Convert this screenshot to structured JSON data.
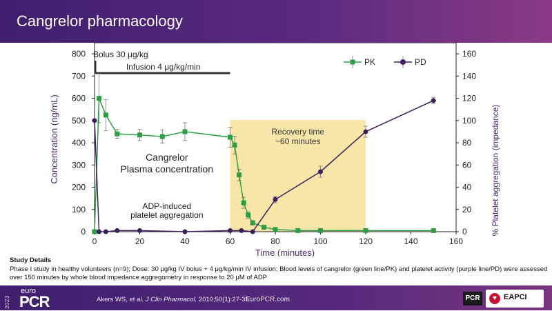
{
  "header": {
    "title": "Cangrelor pharmacology"
  },
  "chart_data": {
    "type": "line",
    "xlabel": "Time (minutes)",
    "ylabel_left": "Concentration (ng/mL)",
    "ylabel_right": "% Platelet aggregation (impedance)",
    "xlim": [
      0,
      160
    ],
    "ylim_left": [
      0,
      850
    ],
    "ylim_right": [
      0,
      170
    ],
    "xticks": [
      "0",
      "20",
      "40",
      "60",
      "80",
      "100",
      "120",
      "140",
      "160"
    ],
    "yticks_left": [
      "0",
      "100",
      "200",
      "300",
      "400",
      "500",
      "600",
      "700",
      "800"
    ],
    "yticks_right": [
      "0",
      "20",
      "40",
      "60",
      "80",
      "100",
      "120",
      "140",
      "160"
    ],
    "legend": {
      "position": "top-right",
      "items": [
        "PK",
        "PD"
      ]
    },
    "recovery_region": {
      "x_start": 60,
      "x_end": 120,
      "color": "#f7e6a8"
    },
    "colors": {
      "pk": "#2e9e46",
      "pd": "#3d1e5a",
      "recovery": "#f7e6a8",
      "axis": "#222222"
    },
    "series": [
      {
        "name": "PK",
        "axis": "left",
        "marker": "square",
        "x": [
          0,
          2,
          5,
          10,
          20,
          30,
          40,
          60,
          62,
          64,
          66,
          68,
          70,
          75,
          80,
          90,
          100,
          120,
          150
        ],
        "y": [
          0,
          600,
          525,
          440,
          435,
          428,
          450,
          425,
          390,
          255,
          130,
          75,
          40,
          20,
          10,
          5,
          5,
          5,
          5
        ],
        "err": [
          0,
          110,
          70,
          20,
          25,
          30,
          40,
          45,
          40,
          25,
          25,
          15,
          10,
          8,
          5,
          0,
          0,
          0,
          0
        ]
      },
      {
        "name": "PD",
        "axis": "right",
        "marker": "circle",
        "x": [
          0,
          2,
          5,
          10,
          20,
          40,
          60,
          65,
          70,
          80,
          100,
          120,
          150
        ],
        "y": [
          100,
          0,
          0,
          1,
          1,
          0,
          1,
          1,
          0,
          29,
          54,
          90,
          118
        ],
        "err": [
          0,
          0,
          0,
          0,
          0,
          0,
          0,
          0,
          0,
          3,
          5,
          5,
          3
        ]
      }
    ],
    "annotations": {
      "bolus": "Bolus 30 μg/kg",
      "infusion": "Infusion 4 μg/kg/min",
      "recovery_1": "Recovery time",
      "recovery_2": "~60 minutes",
      "plasma_1": "Cangrelor",
      "plasma_2": "Plasma concentration",
      "adp_1": "ADP-induced",
      "adp_2": "platelet aggregation"
    }
  },
  "details": {
    "title": "Study Details",
    "text": "Phase I study in healthy volunteers (n=9); Dose: 30 μg/kg IV bolus + 4 μg/kg/min IV infusion; Blood levels of cangrelor (green line/PK) and platelet activity (purple line/PD) were assessed over 150 minutes by whole blood impedance aggregometry in response to 20 μM of ADP"
  },
  "footer": {
    "year": "2023",
    "logo_small": "euro",
    "logo_big": "PCR",
    "citation_pre": "Akers WS, et al. ",
    "citation_journal": "J Clin Pharmacol.",
    "citation_post": " 2010;50(1):27-35..",
    "site": "EuroPCR.com",
    "badge": "PCR",
    "partner": "EAPCI"
  }
}
